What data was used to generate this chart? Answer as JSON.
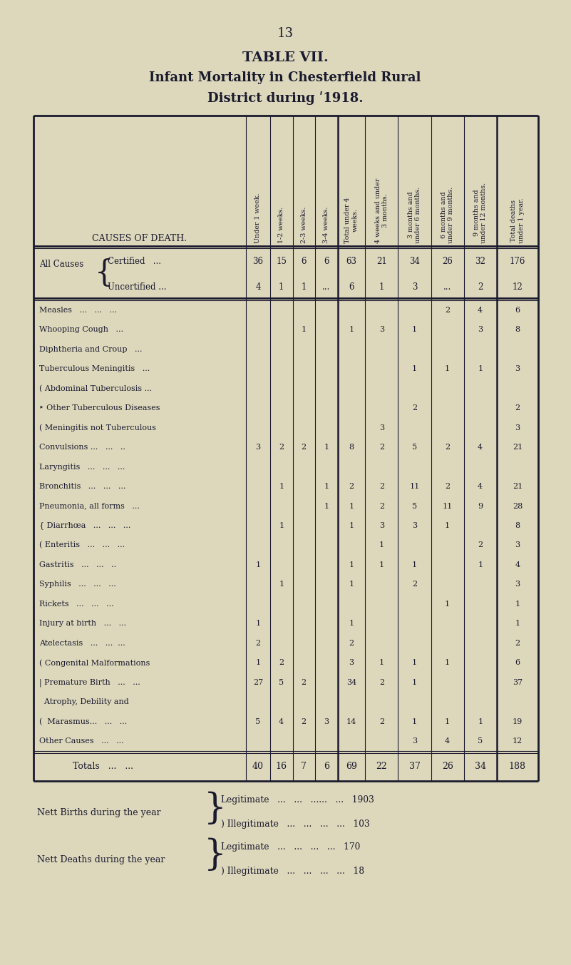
{
  "page_number": "13",
  "title_line1": "TABLE VII.",
  "title_line2": "Infant Mortality in Chesterfield Rural",
  "title_line3": "District during ʹ1918.",
  "bg_color": "#ddd8bc",
  "text_color": "#1a1a2e",
  "col_headers": [
    "Under 1 week.",
    "1-2 weeks.",
    "2-3 weeks.",
    "3-4 weeks.",
    "Total under 4\nweeks.",
    "4 weeks and under\n3 months.",
    "3 months and\nunder 6 months.",
    "6 months and\nunder 9 months.",
    "9 months and\nunder 12 months.",
    "Total deaths\nunder 1 year."
  ],
  "rows": [
    {
      "label": "Certified   ...",
      "prefix": "All Causes",
      "vals": [
        "36",
        "15",
        "6",
        "6",
        "63",
        "21",
        "34",
        "26",
        "32",
        "176"
      ],
      "group_start": true
    },
    {
      "label": "Uncertified ...",
      "prefix": "",
      "vals": [
        "4",
        "1",
        "1",
        "...",
        "6",
        "1",
        "3",
        "...",
        "2",
        "12"
      ],
      "group_end": true
    },
    {
      "label": "Measles   ...   ...   ...",
      "vals": [
        "",
        "",
        "",
        "",
        "",
        "",
        "",
        "2",
        "4",
        "6"
      ]
    },
    {
      "label": "Whooping Cough   ...",
      "vals": [
        "",
        "",
        "1",
        "",
        "1",
        "3",
        "1",
        "",
        "3",
        "8"
      ]
    },
    {
      "label": "Diphtheria and Croup   ...",
      "vals": [
        "",
        "",
        "",
        "",
        "",
        "",
        "",
        "",
        "",
        ""
      ]
    },
    {
      "label": "Tuberculous Meningitis   ...",
      "vals": [
        "",
        "",
        "",
        "",
        "",
        "",
        "1",
        "1",
        "1",
        "3"
      ]
    },
    {
      "label": "( Abdominal Tuberculosis ...",
      "vals": [
        "",
        "",
        "",
        "",
        "",
        "",
        "",
        "",
        "",
        ""
      ]
    },
    {
      "label": "‣ Other Tuberculous Diseases",
      "vals": [
        "",
        "",
        "",
        "",
        "",
        "",
        "2",
        "",
        "",
        "2"
      ]
    },
    {
      "label": "( Meningitis not Tuberculous",
      "vals": [
        "",
        "",
        "",
        "",
        "",
        "3",
        "",
        "",
        "",
        "3"
      ]
    },
    {
      "label": "Convulsions ...   ...   ..",
      "vals": [
        "3",
        "2",
        "2",
        "1",
        "8",
        "2",
        "5",
        "2",
        "4",
        "21"
      ]
    },
    {
      "label": "Laryngitis   ...   ...   ...",
      "vals": [
        "",
        "",
        "",
        "",
        "",
        "",
        "",
        "",
        "",
        ""
      ]
    },
    {
      "label": "Bronchitis   ...   ...   ...",
      "vals": [
        "",
        "1",
        "",
        "1",
        "2",
        "2",
        "11",
        "2",
        "4",
        "21"
      ]
    },
    {
      "label": "Pneumonia, all forms   ...",
      "vals": [
        "",
        "",
        "",
        "1",
        "1",
        "2",
        "5",
        "11",
        "9",
        "28"
      ]
    },
    {
      "label": "{ Diarrhœa   ...   ...   ...",
      "vals": [
        "",
        "1",
        "",
        "",
        "1",
        "3",
        "3",
        "1",
        "",
        "8"
      ]
    },
    {
      "label": "( Enteritis   ...   ...   ...",
      "vals": [
        "",
        "",
        "",
        "",
        "",
        "1",
        "",
        "",
        "2",
        "3"
      ]
    },
    {
      "label": "Gastritis   ...   ...   ..",
      "vals": [
        "1",
        "",
        "",
        "",
        "1",
        "1",
        "1",
        "",
        "1",
        "4"
      ]
    },
    {
      "label": "Syphilis   ...   ...   ...",
      "vals": [
        "",
        "1",
        "",
        "",
        "1",
        "",
        "2",
        "",
        "",
        "3"
      ]
    },
    {
      "label": "Rickets   ...   ...   ...",
      "vals": [
        "",
        "",
        "",
        "",
        "",
        "",
        "",
        "1",
        "",
        "1"
      ]
    },
    {
      "label": "Injury at birth   ...   ...",
      "vals": [
        "1",
        "",
        "",
        "",
        "1",
        "",
        "",
        "",
        "",
        "1"
      ]
    },
    {
      "label": "Atelectasis   ...   ...  ...",
      "vals": [
        "2",
        "",
        "",
        "",
        "2",
        "",
        "",
        "",
        "",
        "2"
      ]
    },
    {
      "label": "( Congenital Malformations",
      "vals": [
        "1",
        "2",
        "",
        "",
        "3",
        "1",
        "1",
        "1",
        "",
        "6"
      ]
    },
    {
      "label": "| Premature Birth   ...   ...",
      "vals": [
        "27",
        "5",
        "2",
        "",
        "34",
        "2",
        "1",
        "",
        "",
        "37"
      ]
    },
    {
      "label": "  Atrophy, Debility and",
      "vals": [
        "",
        "",
        "",
        "",
        "",
        "",
        "",
        "",
        "",
        ""
      ],
      "two_line_top": true
    },
    {
      "label": "(  Marasmus...   ...   ...",
      "vals": [
        "5",
        "4",
        "2",
        "3",
        "14",
        "2",
        "1",
        "1",
        "1",
        "19"
      ],
      "two_line_bot": true
    },
    {
      "label": "Other Causes   ...   ...",
      "vals": [
        "",
        "",
        "",
        "",
        "",
        "",
        "3",
        "4",
        "5",
        "12"
      ]
    }
  ],
  "totals": [
    "40",
    "16",
    "7",
    "6",
    "69",
    "22",
    "37",
    "26",
    "34",
    "188"
  ],
  "footer_births_label": "Nett Births during the year",
  "footer_births_legit": "Legitimate   ...   ...   ......   ...   1903",
  "footer_births_illeg": "Illegitimate   ...   ...   ...   ...   103",
  "footer_deaths_label": "Nett Deaths during the year",
  "footer_deaths_legit": "Legitimate   ...   ...   ...   ...   170",
  "footer_deaths_illeg": "Illegitimate   ...   ...   ...   ...   18",
  "dots": "..."
}
